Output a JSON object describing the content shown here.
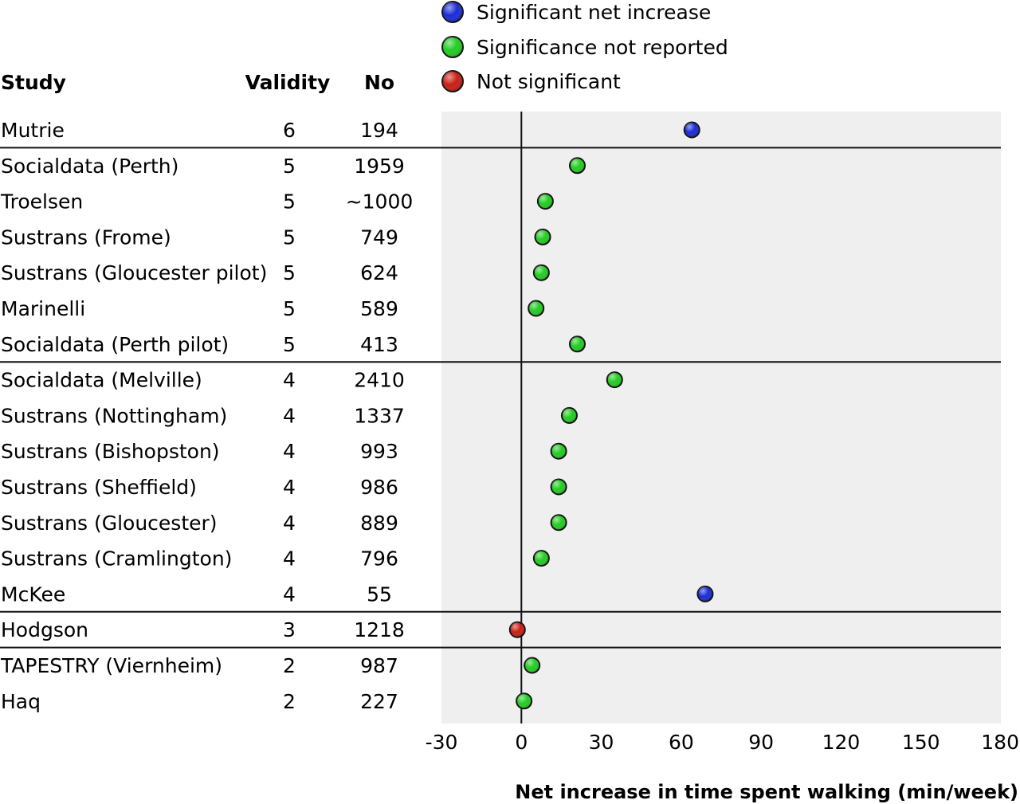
{
  "legend": [
    {
      "label": "Significant net increase",
      "color": "#1a2bd6"
    },
    {
      "label": "Significance not reported",
      "color": "#22cc22"
    },
    {
      "label": "Not significant",
      "color": "#c81e14"
    }
  ],
  "headers": {
    "study": "Study",
    "validity": "Validity",
    "no": "No"
  },
  "chart_data": {
    "type": "scatter",
    "xlabel": "Net increase in time spent walking (min/week)",
    "xlim": [
      -30,
      180
    ],
    "xticks": [
      -30,
      0,
      30,
      60,
      90,
      120,
      150,
      180
    ],
    "reference_line_x": 0,
    "grid": false,
    "legend_position": "top",
    "groups_separated_by_validity": true,
    "rows": [
      {
        "study": "Mutrie",
        "validity": "6",
        "no": "194",
        "value": 64,
        "status": "Significant net increase"
      },
      {
        "study": "Socialdata (Perth)",
        "validity": "5",
        "no": "1959",
        "value": 21,
        "status": "Significance not reported"
      },
      {
        "study": "Troelsen",
        "validity": "5",
        "no": "~1000",
        "value": 9,
        "status": "Significance not reported"
      },
      {
        "study": "Sustrans (Frome)",
        "validity": "5",
        "no": "749",
        "value": 8,
        "status": "Significance not reported"
      },
      {
        "study": "Sustrans (Gloucester pilot)",
        "validity": "5",
        "no": "624",
        "value": 7.5,
        "status": "Significance not reported"
      },
      {
        "study": "Marinelli",
        "validity": "5",
        "no": "589",
        "value": 5.5,
        "status": "Significance not reported"
      },
      {
        "study": "Socialdata (Perth pilot)",
        "validity": "5",
        "no": "413",
        "value": 21,
        "status": "Significance not reported"
      },
      {
        "study": "Socialdata (Melville)",
        "validity": "4",
        "no": "2410",
        "value": 35,
        "status": "Significance not reported"
      },
      {
        "study": "Sustrans (Nottingham)",
        "validity": "4",
        "no": "1337",
        "value": 18,
        "status": "Significance not reported"
      },
      {
        "study": "Sustrans (Bishopston)",
        "validity": "4",
        "no": "993",
        "value": 14,
        "status": "Significance not reported"
      },
      {
        "study": "Sustrans (Sheffield)",
        "validity": "4",
        "no": "986",
        "value": 14,
        "status": "Significance not reported"
      },
      {
        "study": "Sustrans (Gloucester)",
        "validity": "4",
        "no": "889",
        "value": 14,
        "status": "Significance not reported"
      },
      {
        "study": "Sustrans (Cramlington)",
        "validity": "4",
        "no": "796",
        "value": 7.5,
        "status": "Significance not reported"
      },
      {
        "study": "McKee",
        "validity": "4",
        "no": "55",
        "value": 69,
        "status": "Significant net increase"
      },
      {
        "study": "Hodgson",
        "validity": "3",
        "no": "1218",
        "value": -1.5,
        "status": "Not significant"
      },
      {
        "study": "TAPESTRY (Viernheim)",
        "validity": "2",
        "no": "987",
        "value": 4,
        "status": "Significance not reported"
      },
      {
        "study": "Haq",
        "validity": "2",
        "no": "227",
        "value": 1,
        "status": "Significance not reported"
      }
    ]
  }
}
